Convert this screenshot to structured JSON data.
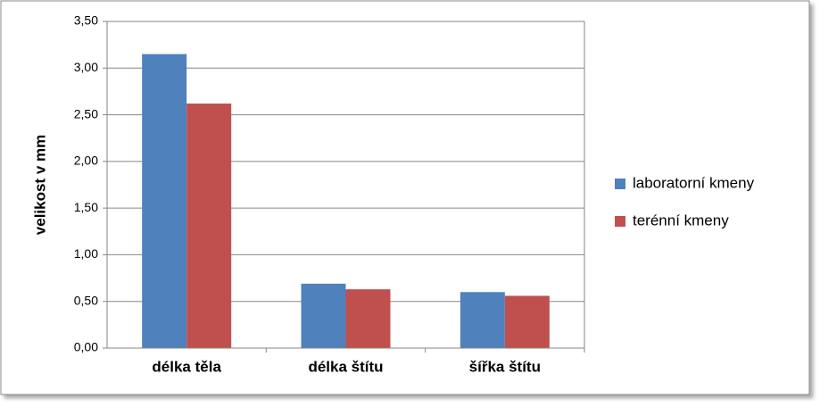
{
  "chart_data": {
    "type": "bar",
    "y_label": "velikost v mm",
    "categories": [
      "délka těla",
      "délka štítu",
      "šířka štítu"
    ],
    "series": [
      {
        "name": "laboratorní kmeny",
        "color": "#4f81bd",
        "values": [
          3.15,
          0.69,
          0.6
        ]
      },
      {
        "name": "terénní kmeny",
        "color": "#c0504d",
        "values": [
          2.62,
          0.63,
          0.56
        ]
      }
    ],
    "ylim": [
      0,
      3.5
    ],
    "yticks": [
      {
        "value": 0,
        "label": "0,00"
      },
      {
        "value": 0.5,
        "label": "0,50"
      },
      {
        "value": 1,
        "label": "1,00"
      },
      {
        "value": 1.5,
        "label": "1,50"
      },
      {
        "value": 2,
        "label": "2,00"
      },
      {
        "value": 2.5,
        "label": "2,50"
      },
      {
        "value": 3,
        "label": "3,00"
      },
      {
        "value": 3.5,
        "label": "3,50"
      }
    ],
    "grid": true,
    "legend": "right"
  }
}
